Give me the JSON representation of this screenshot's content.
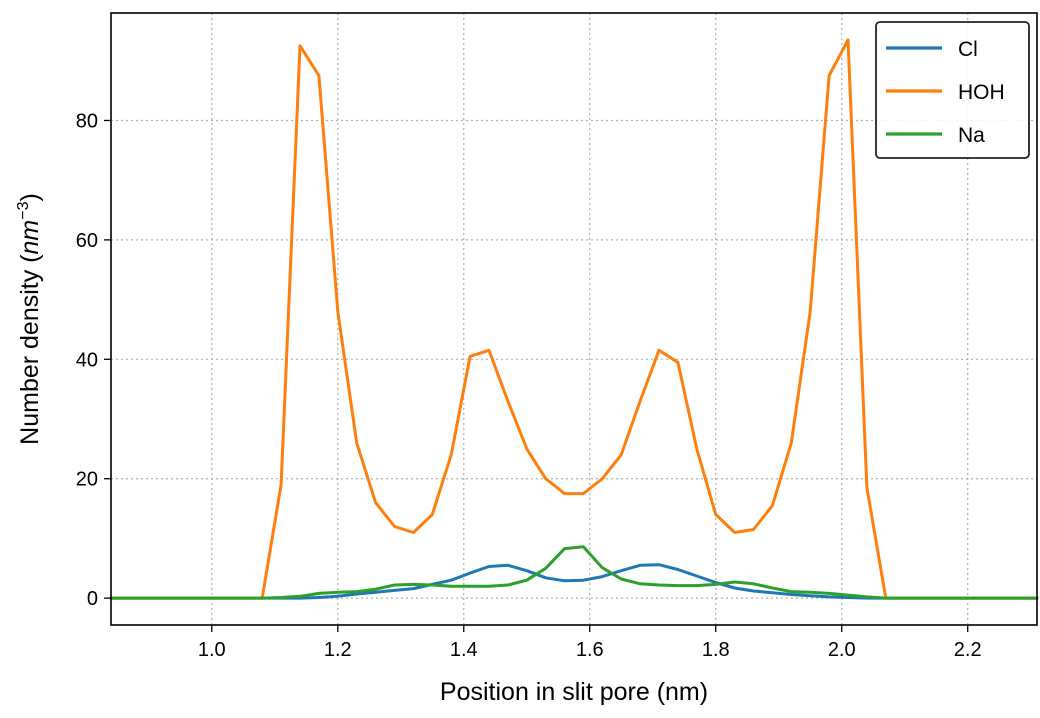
{
  "chart_data": {
    "type": "line",
    "xlabel": "Position in slit pore (nm)",
    "ylabel": "Number density (",
    "ylabel_unit_base": "nm",
    "ylabel_unit_exp": "−3",
    "ylabel_close": ")",
    "xlim": [
      0.84,
      2.31
    ],
    "ylim": [
      -4.5,
      98
    ],
    "xticks": [
      1.0,
      1.2,
      1.4,
      1.6,
      1.8,
      2.0,
      2.2
    ],
    "xtick_labels": [
      "1.0",
      "1.2",
      "1.4",
      "1.6",
      "1.8",
      "2.0",
      "2.2"
    ],
    "yticks": [
      0,
      20,
      40,
      60,
      80
    ],
    "ytick_labels": [
      "0",
      "20",
      "40",
      "60",
      "80"
    ],
    "grid": true,
    "legend_position": "top-right",
    "x": [
      0.84,
      0.89,
      0.94,
      0.99,
      1.04,
      1.08,
      1.11,
      1.14,
      1.17,
      1.2,
      1.23,
      1.26,
      1.29,
      1.32,
      1.35,
      1.38,
      1.41,
      1.44,
      1.47,
      1.5,
      1.53,
      1.56,
      1.59,
      1.62,
      1.65,
      1.68,
      1.71,
      1.74,
      1.77,
      1.8,
      1.83,
      1.86,
      1.89,
      1.92,
      1.95,
      1.98,
      2.01,
      2.04,
      2.07,
      2.12,
      2.17,
      2.22,
      2.27,
      2.31
    ],
    "series": [
      {
        "name": "Cl",
        "color": "#1f77b4",
        "values": [
          0,
          0,
          0,
          0,
          0,
          0,
          0,
          0,
          0.1,
          0.3,
          0.7,
          1.0,
          1.3,
          1.6,
          2.3,
          3.0,
          4.2,
          5.3,
          5.5,
          4.6,
          3.4,
          2.9,
          3.0,
          3.6,
          4.6,
          5.5,
          5.6,
          4.8,
          3.7,
          2.6,
          1.7,
          1.2,
          0.9,
          0.6,
          0.4,
          0.2,
          0.1,
          0,
          0,
          0,
          0,
          0,
          0,
          0
        ]
      },
      {
        "name": "HOH",
        "color": "#ff7f0e",
        "values": [
          0,
          0,
          0,
          0,
          0,
          0,
          19,
          92.5,
          87.5,
          48,
          26,
          16,
          12,
          11,
          14,
          24,
          40.5,
          41.5,
          33,
          25,
          20,
          17.5,
          17.5,
          20,
          24,
          33,
          41.5,
          39.5,
          25,
          14,
          11,
          11.5,
          15.5,
          26,
          48,
          87.5,
          93.5,
          18.5,
          0,
          0,
          0,
          0,
          0,
          0
        ]
      },
      {
        "name": "Na",
        "color": "#2ca02c",
        "values": [
          0,
          0,
          0,
          0,
          0,
          0,
          0.1,
          0.3,
          0.8,
          1.0,
          1.1,
          1.5,
          2.2,
          2.3,
          2.2,
          2.0,
          2.0,
          2.0,
          2.2,
          3.0,
          5.0,
          8.3,
          8.6,
          5.1,
          3.2,
          2.4,
          2.2,
          2.1,
          2.1,
          2.3,
          2.7,
          2.4,
          1.7,
          1.1,
          1.0,
          0.8,
          0.5,
          0.2,
          0,
          0,
          0,
          0,
          0,
          0
        ]
      }
    ]
  }
}
